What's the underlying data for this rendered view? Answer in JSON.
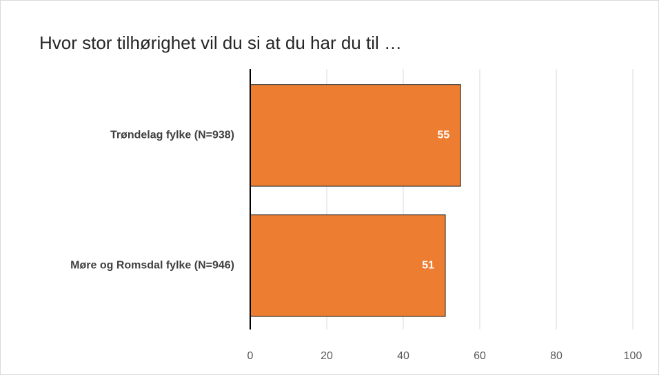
{
  "chart_data": {
    "type": "bar",
    "orientation": "horizontal",
    "title": "Hvor stor tilhørighet vil du si at du har du til …",
    "categories": [
      "Trøndelag fylke (N=938)",
      "Møre og Romsdal fylke (N=946)"
    ],
    "values": [
      55,
      51
    ],
    "color": "#ed7d31",
    "xlim": [
      0,
      100
    ],
    "xticks": [
      0,
      20,
      40,
      60,
      80,
      100
    ],
    "grid": true
  }
}
